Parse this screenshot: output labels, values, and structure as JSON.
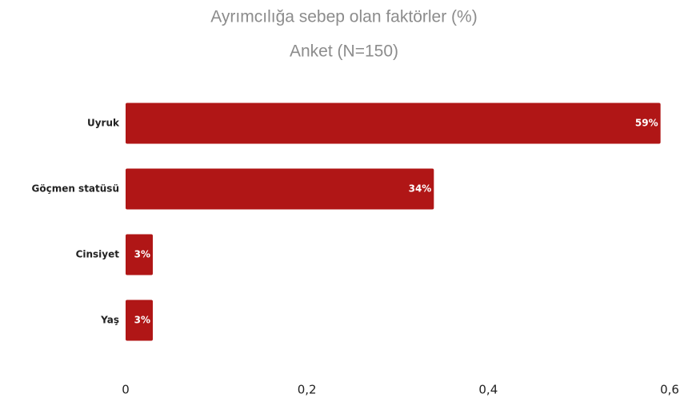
{
  "chart_data": {
    "type": "bar",
    "orientation": "horizontal",
    "title": "Ayrımcılığa sebep olan faktörler (%)",
    "subtitle": "Anket (N=150)",
    "categories": [
      "Uyruk",
      "Göçmen statüsü",
      "Cinsiyet",
      "Yaş"
    ],
    "values": [
      0.59,
      0.34,
      0.03,
      0.03
    ],
    "value_labels": [
      "59%",
      "34%",
      "3%",
      "3%"
    ],
    "color": "#b01616",
    "xlim": [
      0,
      0.6
    ],
    "xticks": [
      0,
      {
        "value": 0.2,
        "label": "0,2"
      },
      {
        "value": 0.4,
        "label": "0,4"
      },
      {
        "value": 0.6,
        "label": "0,6"
      }
    ],
    "grid": false
  }
}
